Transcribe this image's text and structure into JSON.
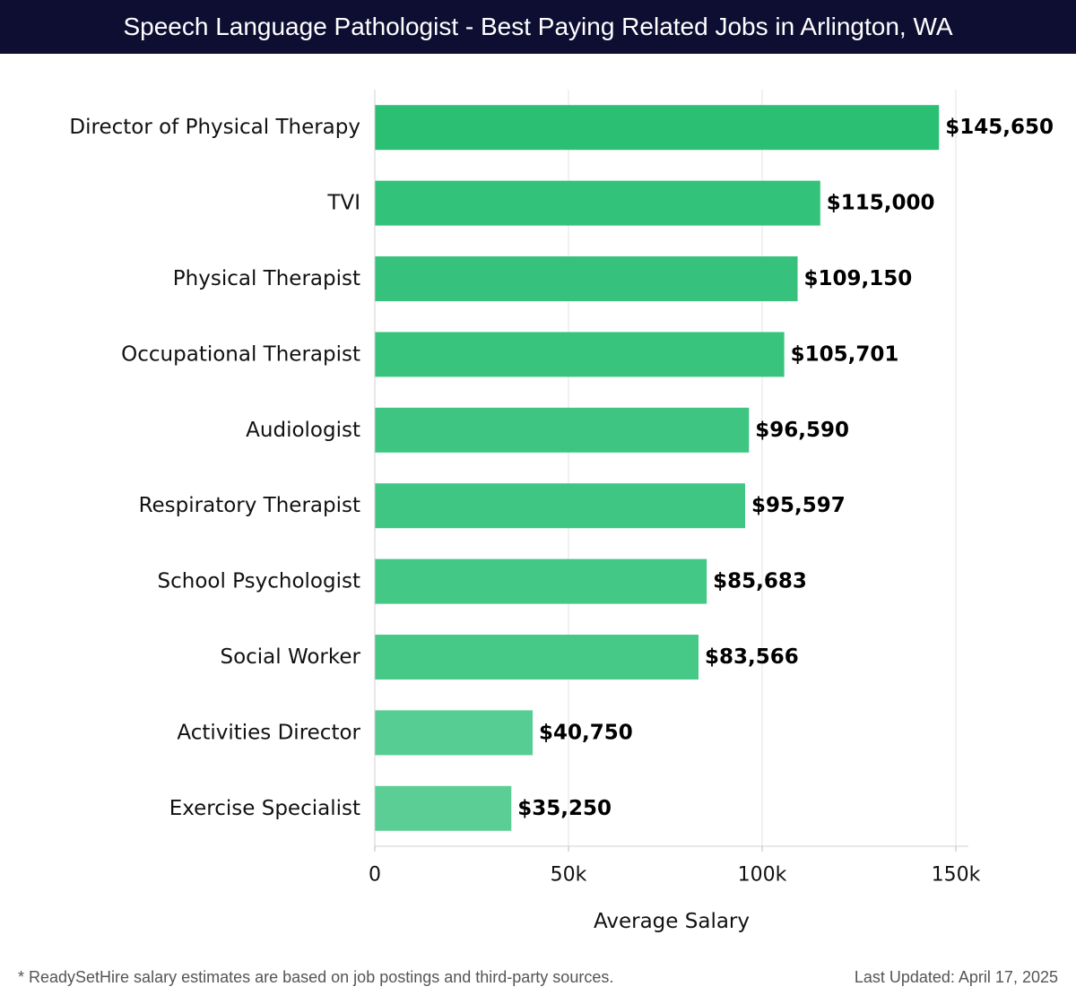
{
  "header": {
    "title": "Speech Language Pathologist - Best Paying Related Jobs in Arlington, WA"
  },
  "chart_data": {
    "type": "bar",
    "orientation": "horizontal",
    "categories": [
      "Director of Physical Therapy",
      "TVI",
      "Physical Therapist",
      "Occupational Therapist",
      "Audiologist",
      "Respiratory Therapist",
      "School Psychologist",
      "Social Worker",
      "Activities Director",
      "Exercise Specialist"
    ],
    "values": [
      145650,
      115000,
      109150,
      105701,
      96590,
      95597,
      85683,
      83566,
      40750,
      35250
    ],
    "value_labels": [
      "$145,650",
      "$115,000",
      "$109,150",
      "$105,701",
      "$96,590",
      "$95,597",
      "$85,683",
      "$83,566",
      "$40,750",
      "$35,250"
    ],
    "xlabel": "Average Salary",
    "ylabel": "",
    "xlim": [
      0,
      150000
    ],
    "x_ticks": [
      0,
      50000,
      100000,
      150000
    ],
    "x_tick_labels": [
      "0",
      "50k",
      "100k",
      "150k"
    ],
    "grid": "vertical",
    "colors": [
      "#2bbf74",
      "#33c27a",
      "#36c27c",
      "#39c47e",
      "#3dc581",
      "#3fc683",
      "#44c886",
      "#46c887",
      "#55cd93",
      "#5bce95"
    ]
  },
  "footer": {
    "note": "* ReadySetHire salary estimates are based on job postings and third-party sources.",
    "updated": "Last Updated: April 17, 2025"
  }
}
